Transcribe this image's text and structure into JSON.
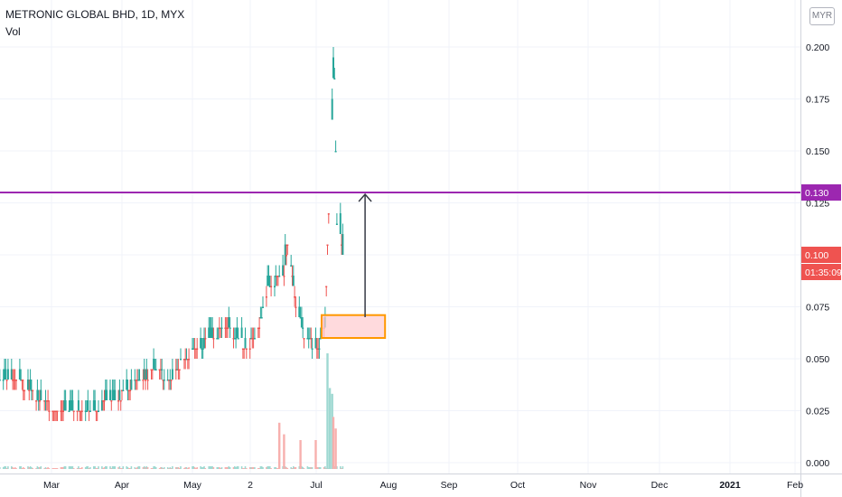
{
  "header": {
    "title": "METRONIC GLOBAL BHD, 1D, MYX",
    "indicator": "Vol",
    "currency": "MYR"
  },
  "chart_data": {
    "type": "candlestick",
    "symbol": "METRONIC GLOBAL BHD",
    "interval": "1D",
    "exchange": "MYX",
    "y_axis": {
      "ticks": [
        "0.000",
        "0.025",
        "0.050",
        "0.075",
        "0.100",
        "0.125",
        "0.150",
        "0.175",
        "0.200"
      ],
      "ylim": [
        -0.003,
        0.21
      ]
    },
    "x_axis": {
      "labels": [
        "Mar",
        "Apr",
        "May",
        "2",
        "Jul",
        "Aug",
        "Sep",
        "Oct",
        "Nov",
        "Dec",
        "2021",
        "Feb"
      ]
    },
    "price_badges": [
      {
        "text": "0.130",
        "value": 0.13,
        "color": "#9c27b0"
      },
      {
        "text": "0.100",
        "value": 0.1,
        "color": "#ef5350"
      },
      {
        "text": "01:35:09",
        "color": "#ef5350"
      }
    ],
    "horizontal_line": {
      "value": 0.13,
      "color": "#9c27b0"
    },
    "annotation_box": {
      "from_date": "2020-11-07",
      "to_date": "2020-12-31",
      "low": 0.06,
      "high": 0.071,
      "fill": "#ffcdd2",
      "border": "#ff9800"
    },
    "arrow": {
      "date": "2020-12-14",
      "from": 0.07,
      "to": 0.13,
      "color": "#363a45"
    },
    "up_color": "#26a69a",
    "down_color": "#ef5350",
    "segments": [
      [
        "2020-02-03",
        "2020-02-18",
        0.04,
        0.04
      ],
      [
        "2020-02-19",
        "2020-03-04",
        0.04,
        0.035
      ],
      [
        "2020-03-05",
        "2020-03-12",
        0.035,
        0.03
      ],
      [
        "2020-03-13",
        "2020-03-25",
        0.03,
        0.025
      ],
      [
        "2020-03-26",
        "2020-04-25",
        0.025,
        0.025
      ],
      [
        "2020-04-26",
        "2020-05-14",
        0.025,
        0.03
      ],
      [
        "2020-05-15",
        "2020-06-05",
        0.03,
        0.04
      ],
      [
        "2020-06-06",
        "2020-06-18",
        0.04,
        0.045
      ],
      [
        "2020-06-19",
        "2020-06-30",
        0.045,
        0.04
      ],
      [
        "2020-07-01",
        "2020-07-13",
        0.04,
        0.05
      ],
      [
        "2020-07-14",
        "2020-08-05",
        0.05,
        0.06
      ],
      [
        "2020-08-06",
        "2020-08-18",
        0.06,
        0.065
      ],
      [
        "2020-08-19",
        "2020-09-05",
        0.065,
        0.055
      ],
      [
        "2020-09-06",
        "2020-09-14",
        0.055,
        0.065
      ],
      [
        "2020-09-15",
        "2020-09-22",
        0.065,
        0.085
      ],
      [
        "2020-09-23",
        "2020-10-05",
        0.085,
        0.09
      ],
      [
        "2020-10-06",
        "2020-10-09",
        0.09,
        0.105
      ],
      [
        "2020-10-10",
        "2020-10-16",
        0.105,
        0.075
      ],
      [
        "2020-10-17",
        "2020-10-23",
        0.075,
        0.06
      ],
      [
        "2020-10-24",
        "2020-11-04",
        0.06,
        0.055
      ],
      [
        "2020-11-05",
        "2020-11-09",
        0.055,
        0.065
      ],
      [
        "2020-11-10",
        "2020-11-14",
        0.065,
        0.14
      ],
      [
        "2020-11-15",
        "2020-11-17",
        0.14,
        0.185
      ],
      [
        "2020-11-18",
        "2020-11-20",
        0.185,
        0.115
      ],
      [
        "2020-11-21",
        "2020-11-25",
        0.115,
        0.1
      ]
    ],
    "volume_spikes": [
      {
        "date": "2020-10-02",
        "ratio": 0.4,
        "dir": "down"
      },
      {
        "date": "2020-10-06",
        "ratio": 0.3,
        "dir": "down"
      },
      {
        "date": "2020-10-20",
        "ratio": 0.25,
        "dir": "down"
      },
      {
        "date": "2020-11-02",
        "ratio": 0.25,
        "dir": "down"
      },
      {
        "date": "2020-11-12",
        "ratio": 1.0,
        "dir": "up"
      },
      {
        "date": "2020-11-14",
        "ratio": 0.7,
        "dir": "up"
      },
      {
        "date": "2020-11-16",
        "ratio": 0.65,
        "dir": "up"
      },
      {
        "date": "2020-11-17",
        "ratio": 0.45,
        "dir": "down"
      },
      {
        "date": "2020-11-19",
        "ratio": 0.35,
        "dir": "down"
      }
    ]
  }
}
